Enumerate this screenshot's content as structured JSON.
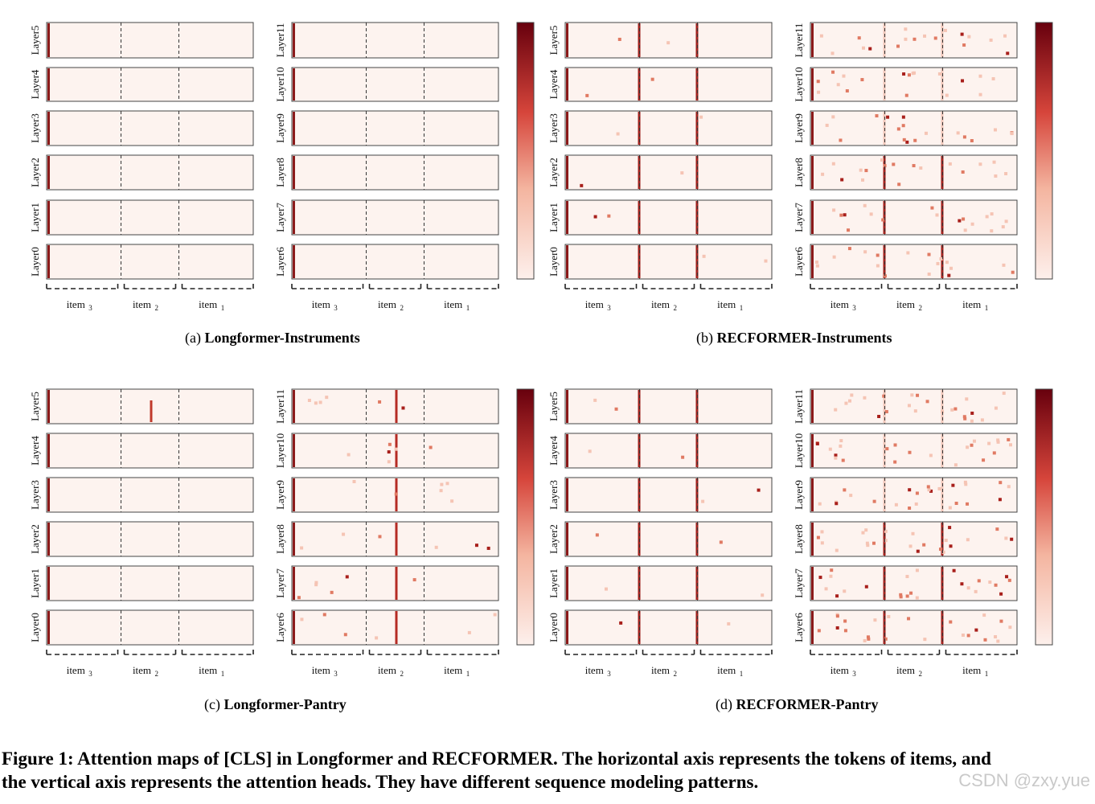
{
  "figure": {
    "panels": [
      {
        "id": "a",
        "label": "(a)",
        "title": "Longformer-Instruments"
      },
      {
        "id": "b",
        "label": "(b)",
        "title": "RECFORMER-Instruments"
      },
      {
        "id": "c",
        "label": "(c)",
        "title": "Longformer-Pantry"
      },
      {
        "id": "d",
        "label": "(d)",
        "title": "RECFORMER-Pantry"
      }
    ],
    "layer_labels_left": [
      "Layer5",
      "Layer4",
      "Layer3",
      "Layer2",
      "Layer1",
      "Layer0"
    ],
    "layer_labels_right": [
      "Layer11",
      "Layer10",
      "Layer9",
      "Layer8",
      "Layer7",
      "Layer6"
    ],
    "item_labels": [
      "item",
      "item",
      "item"
    ],
    "item_subscripts": [
      "3",
      "2",
      "1"
    ],
    "colorbar": {
      "low_color": "#fdf0ec",
      "high_color": "#67000d",
      "mid_color": "#d6453b"
    },
    "caption": "Figure 1: Attention maps of [CLS] in Longformer and RECFORMER. The horizontal axis represents the tokens of items, and",
    "caption_line2": "the vertical axis represents the attention heads. They have different sequence modeling patterns.",
    "watermark": "CSDN @zxy.yue"
  },
  "chart_data": [
    {
      "type": "heatmap",
      "title": "Longformer-Instruments",
      "layers": [
        "Layer0",
        "Layer1",
        "Layer2",
        "Layer3",
        "Layer4",
        "Layer5",
        "Layer6",
        "Layer7",
        "Layer8",
        "Layer9",
        "Layer10",
        "Layer11"
      ],
      "xlabel": "item3 | item2 | item1",
      "ylabel": "attention heads",
      "pattern": "attention concentrated on first token in all layers"
    },
    {
      "type": "heatmap",
      "title": "RECFORMER-Instruments",
      "layers": [
        "Layer0",
        "Layer1",
        "Layer2",
        "Layer3",
        "Layer4",
        "Layer5",
        "Layer6",
        "Layer7",
        "Layer8",
        "Layer9",
        "Layer10",
        "Layer11"
      ],
      "xlabel": "item3 | item2 | item1",
      "ylabel": "attention heads",
      "pattern": "attention at item boundaries; scattered in upper layers"
    },
    {
      "type": "heatmap",
      "title": "Longformer-Pantry",
      "layers": [
        "Layer0",
        "Layer1",
        "Layer2",
        "Layer3",
        "Layer4",
        "Layer5",
        "Layer6",
        "Layer7",
        "Layer8",
        "Layer9",
        "Layer10",
        "Layer11"
      ],
      "xlabel": "item3 | item2 | item1",
      "ylabel": "attention heads",
      "pattern": "first token plus one column in item2"
    },
    {
      "type": "heatmap",
      "title": "RECFORMER-Pantry",
      "layers": [
        "Layer0",
        "Layer1",
        "Layer2",
        "Layer3",
        "Layer4",
        "Layer5",
        "Layer6",
        "Layer7",
        "Layer8",
        "Layer9",
        "Layer10",
        "Layer11"
      ],
      "xlabel": "item3 | item2 | item1",
      "ylabel": "attention heads",
      "pattern": "attention at item boundaries; scattered in upper layers"
    }
  ]
}
